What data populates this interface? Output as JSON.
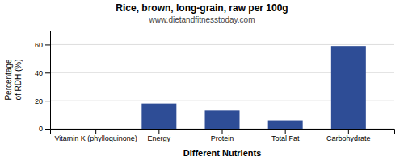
{
  "chart_data": {
    "type": "bar",
    "title": "Rice, brown, long-grain, raw per 100g",
    "subtitle": "www.dietandfitnesstoday.com",
    "xlabel": "Different Nutrients",
    "ylabel": "Percentage\nof RDH (%)",
    "categories": [
      "Vitamin K (phylloquinone)",
      "Energy",
      "Protein",
      "Total Fat",
      "Carbohydrate"
    ],
    "values": [
      0,
      18,
      13,
      6,
      59
    ],
    "color": "#2e4d96",
    "ylim": [
      0,
      70
    ],
    "yticks": [
      0,
      20,
      40,
      60
    ],
    "grid": true
  }
}
